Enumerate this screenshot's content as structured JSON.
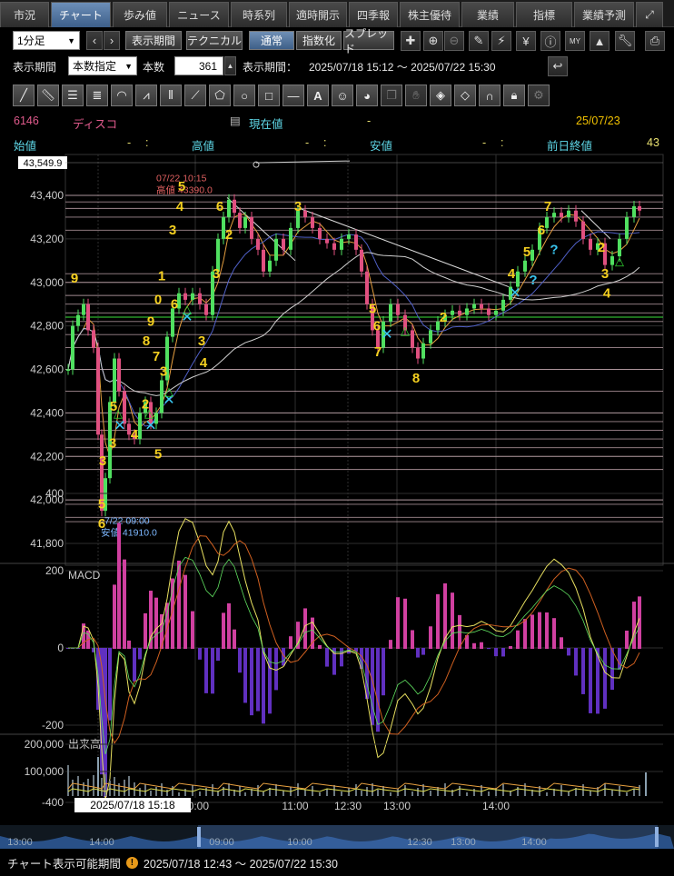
{
  "tabs": [
    {
      "label": "市況",
      "active": false
    },
    {
      "label": "チャート",
      "active": true
    },
    {
      "label": "歩み値",
      "active": false
    },
    {
      "label": "ニュース",
      "active": false
    },
    {
      "label": "時系列",
      "active": false
    },
    {
      "label": "適時開示",
      "active": false
    },
    {
      "label": "四季報",
      "active": false
    },
    {
      "label": "株主優待",
      "active": false
    },
    {
      "label": "業績",
      "active": false
    },
    {
      "label": "指標",
      "active": false
    },
    {
      "label": "業績予測",
      "active": false
    }
  ],
  "toolbar": {
    "interval": "1分足",
    "period_btn": "表示期間",
    "technical_btn": "テクニカル",
    "normal_btn": "通常",
    "index_btn": "指数化",
    "spread_btn": "スプレッド",
    "period_label": "表示期間",
    "period_mode": "本数指定",
    "count_label": "本数",
    "count_value": "361",
    "range_label": "表示期間：",
    "range_value": "2025/07/18 15:12 〜 2025/07/22 15:30"
  },
  "quote": {
    "code": "6146",
    "name": "ディスコ",
    "current_label": "現在値",
    "current_value": "-",
    "date": "25/07/23",
    "open_label": "始値",
    "open_value": "-",
    "open_time": ":",
    "high_label": "高値",
    "high_value": "-",
    "high_time": ":",
    "low_label": "安値",
    "low_value": "-",
    "low_time": ":",
    "prev_label": "前日終値",
    "prev_value": "43"
  },
  "chart_data": {
    "type": "candlestick",
    "price_axis": {
      "min": 41800,
      "max": 43549.9,
      "ticks": [
        43400,
        43200,
        43000,
        42800,
        42600,
        42400,
        42200,
        42000,
        41800
      ]
    },
    "top_value_label": "43,549.9",
    "high_annotation": {
      "time": "07/22 10:15",
      "label": "高値 43390.0",
      "value": 43390
    },
    "low_annotation": {
      "time": "7/22 09:00",
      "label": "安値 41910.0",
      "value": 41910
    },
    "price_path": [
      {
        "x": 75,
        "v": 42600
      },
      {
        "x": 80,
        "v": 42800
      },
      {
        "x": 86,
        "v": 42850
      },
      {
        "x": 92,
        "v": 42900
      },
      {
        "x": 97,
        "v": 42780
      },
      {
        "x": 103,
        "v": 42700
      },
      {
        "x": 108,
        "v": 42300
      },
      {
        "x": 112,
        "v": 41950
      },
      {
        "x": 116,
        "v": 42100
      },
      {
        "x": 121,
        "v": 42450
      },
      {
        "x": 126,
        "v": 42650
      },
      {
        "x": 131,
        "v": 42500
      },
      {
        "x": 137,
        "v": 42350
      },
      {
        "x": 142,
        "v": 42300
      },
      {
        "x": 148,
        "v": 42280
      },
      {
        "x": 154,
        "v": 42400
      },
      {
        "x": 160,
        "v": 42450
      },
      {
        "x": 166,
        "v": 42350
      },
      {
        "x": 172,
        "v": 42400
      },
      {
        "x": 178,
        "v": 42550
      },
      {
        "x": 184,
        "v": 42750
      },
      {
        "x": 190,
        "v": 42880
      },
      {
        "x": 197,
        "v": 42950
      },
      {
        "x": 204,
        "v": 42920
      },
      {
        "x": 212,
        "v": 42950
      },
      {
        "x": 220,
        "v": 42900
      },
      {
        "x": 227,
        "v": 42850
      },
      {
        "x": 234,
        "v": 43050
      },
      {
        "x": 240,
        "v": 43200
      },
      {
        "x": 246,
        "v": 43300
      },
      {
        "x": 252,
        "v": 43380
      },
      {
        "x": 258,
        "v": 43320
      },
      {
        "x": 264,
        "v": 43250
      },
      {
        "x": 270,
        "v": 43300
      },
      {
        "x": 277,
        "v": 43200
      },
      {
        "x": 284,
        "v": 43150
      },
      {
        "x": 290,
        "v": 43050
      },
      {
        "x": 297,
        "v": 43100
      },
      {
        "x": 304,
        "v": 43200
      },
      {
        "x": 312,
        "v": 43150
      },
      {
        "x": 320,
        "v": 43250
      },
      {
        "x": 328,
        "v": 43330
      },
      {
        "x": 336,
        "v": 43300
      },
      {
        "x": 344,
        "v": 43250
      },
      {
        "x": 352,
        "v": 43200
      },
      {
        "x": 360,
        "v": 43180
      },
      {
        "x": 368,
        "v": 43150
      },
      {
        "x": 376,
        "v": 43200
      },
      {
        "x": 384,
        "v": 43220
      },
      {
        "x": 392,
        "v": 43150
      },
      {
        "x": 398,
        "v": 43050
      },
      {
        "x": 404,
        "v": 42900
      },
      {
        "x": 410,
        "v": 42780
      },
      {
        "x": 416,
        "v": 42700
      },
      {
        "x": 422,
        "v": 42820
      },
      {
        "x": 430,
        "v": 42900
      },
      {
        "x": 438,
        "v": 42850
      },
      {
        "x": 446,
        "v": 42780
      },
      {
        "x": 454,
        "v": 42700
      },
      {
        "x": 460,
        "v": 42650
      },
      {
        "x": 466,
        "v": 42720
      },
      {
        "x": 474,
        "v": 42780
      },
      {
        "x": 482,
        "v": 42820
      },
      {
        "x": 490,
        "v": 42850
      },
      {
        "x": 498,
        "v": 42870
      },
      {
        "x": 506,
        "v": 42850
      },
      {
        "x": 514,
        "v": 42880
      },
      {
        "x": 522,
        "v": 42900
      },
      {
        "x": 530,
        "v": 42880
      },
      {
        "x": 538,
        "v": 42850
      },
      {
        "x": 546,
        "v": 42870
      },
      {
        "x": 554,
        "v": 42920
      },
      {
        "x": 562,
        "v": 42980
      },
      {
        "x": 570,
        "v": 43050
      },
      {
        "x": 578,
        "v": 43100
      },
      {
        "x": 586,
        "v": 43150
      },
      {
        "x": 594,
        "v": 43250
      },
      {
        "x": 602,
        "v": 43300
      },
      {
        "x": 610,
        "v": 43320
      },
      {
        "x": 618,
        "v": 43300
      },
      {
        "x": 626,
        "v": 43330
      },
      {
        "x": 634,
        "v": 43280
      },
      {
        "x": 642,
        "v": 43200
      },
      {
        "x": 650,
        "v": 43150
      },
      {
        "x": 658,
        "v": 43180
      },
      {
        "x": 666,
        "v": 43080
      },
      {
        "x": 674,
        "v": 43120
      },
      {
        "x": 682,
        "v": 43200
      },
      {
        "x": 690,
        "v": 43300
      },
      {
        "x": 698,
        "v": 43350
      },
      {
        "x": 704,
        "v": 43330
      }
    ],
    "count_labels": [
      {
        "t": "9",
        "x": 82,
        "v": 43000
      },
      {
        "t": "3",
        "x": 113,
        "v": 42160
      },
      {
        "t": "5",
        "x": 112,
        "v": 41960
      },
      {
        "t": "6",
        "x": 112,
        "v": 41870
      },
      {
        "t": "3",
        "x": 124,
        "v": 42240
      },
      {
        "t": "5",
        "x": 125,
        "v": 42410
      },
      {
        "t": "4",
        "x": 148,
        "v": 42280
      },
      {
        "t": "2",
        "x": 160,
        "v": 42420
      },
      {
        "t": "5",
        "x": 174,
        "v": 42190
      },
      {
        "t": "7",
        "x": 172,
        "v": 42640
      },
      {
        "t": "3",
        "x": 180,
        "v": 42570
      },
      {
        "t": "8",
        "x": 161,
        "v": 42710
      },
      {
        "t": "9",
        "x": 166,
        "v": 42800
      },
      {
        "t": "0",
        "x": 174,
        "v": 42900
      },
      {
        "t": "1",
        "x": 178,
        "v": 43010
      },
      {
        "t": "6",
        "x": 192,
        "v": 42880
      },
      {
        "t": "3",
        "x": 222,
        "v": 42710
      },
      {
        "t": "4",
        "x": 224,
        "v": 42610
      },
      {
        "t": "3",
        "x": 190,
        "v": 43220
      },
      {
        "t": "4",
        "x": 198,
        "v": 43330
      },
      {
        "t": "5",
        "x": 200,
        "v": 43420
      },
      {
        "t": "6",
        "x": 242,
        "v": 43330
      },
      {
        "t": "2",
        "x": 252,
        "v": 43200
      },
      {
        "t": "3",
        "x": 238,
        "v": 43020
      },
      {
        "t": "3",
        "x": 328,
        "v": 43330
      },
      {
        "t": "5",
        "x": 410,
        "v": 42860
      },
      {
        "t": "6",
        "x": 415,
        "v": 42780
      },
      {
        "t": "7",
        "x": 416,
        "v": 42660
      },
      {
        "t": "8",
        "x": 458,
        "v": 42540
      },
      {
        "t": "2",
        "x": 488,
        "v": 42820
      },
      {
        "t": "4",
        "x": 563,
        "v": 43020
      },
      {
        "t": "5",
        "x": 580,
        "v": 43120
      },
      {
        "t": "6",
        "x": 596,
        "v": 43220
      },
      {
        "t": "7",
        "x": 603,
        "v": 43330
      },
      {
        "t": "2",
        "x": 662,
        "v": 43140
      },
      {
        "t": "3",
        "x": 666,
        "v": 43020
      },
      {
        "t": "4",
        "x": 668,
        "v": 42930
      }
    ],
    "cross_markers": [
      {
        "x": 132,
        "v": 42320
      },
      {
        "x": 166,
        "v": 42320
      },
      {
        "x": 186,
        "v": 42440
      },
      {
        "x": 206,
        "v": 42820
      },
      {
        "x": 426,
        "v": 42740
      },
      {
        "x": 567,
        "v": 42930
      }
    ],
    "triangle_markers": [
      {
        "x": 130,
        "v": 42380
      },
      {
        "x": 164,
        "v": 42380
      },
      {
        "x": 186,
        "v": 42480
      },
      {
        "x": 206,
        "v": 42860
      },
      {
        "x": 446,
        "v": 42760
      },
      {
        "x": 682,
        "v": 43080
      }
    ],
    "question_markers": [
      {
        "x": 610,
        "v": 43130
      },
      {
        "x": 587,
        "v": 42990
      }
    ],
    "horizontal_lines": [
      43400,
      43370,
      43340,
      43300,
      43240,
      43040,
      43000,
      42940,
      42900,
      42860,
      42820,
      42760,
      42700,
      42600,
      42500,
      42400,
      42360,
      42320,
      42280,
      42240,
      42200,
      42140,
      42000,
      41980,
      41920,
      41900
    ],
    "green_line": 42840,
    "macd": {
      "label": "MACD",
      "ticks": [
        400,
        200,
        0,
        -200,
        -400
      ]
    },
    "volume": {
      "label": "出来高",
      "ticks": [
        "200,000",
        "100,000"
      ]
    },
    "time_labels": [
      {
        "t": "10:00",
        "x": 215
      },
      {
        "t": "11:00",
        "x": 325
      },
      {
        "t": "12:30",
        "x": 383
      },
      {
        "t": "13:00",
        "x": 437
      },
      {
        "t": "14:00",
        "x": 546
      }
    ],
    "cursor_time": "2025/07/18 15:18"
  },
  "navigator": {
    "labels": [
      {
        "t": "13:00",
        "x": 22
      },
      {
        "t": "14:00",
        "x": 112
      },
      {
        "t": "09:00",
        "x": 244
      },
      {
        "t": "10:00",
        "x": 330
      },
      {
        "t": "12:30",
        "x": 462
      },
      {
        "t": "13:00",
        "x": 510
      },
      {
        "t": "14:00",
        "x": 588
      }
    ]
  },
  "footer": {
    "label": "チャート表示可能期間",
    "range": "2025/07/18 12:43 〜 2025/07/22 15:30"
  }
}
